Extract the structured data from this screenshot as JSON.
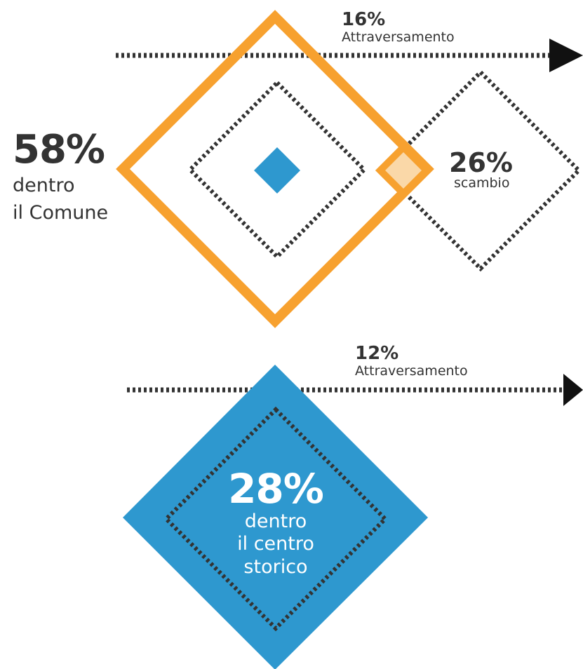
{
  "colors": {
    "orange": "#F7A12F",
    "blue": "#2E98CF",
    "dark": "#333333",
    "overlap": "#FAD8A8",
    "white": "#FFFFFF"
  },
  "comune": {
    "percent": "58%",
    "line1": "dentro",
    "line2": "il Comune"
  },
  "scambio": {
    "percent": "26%",
    "label": "scambio"
  },
  "attraversamento_comune": {
    "percent": "16%",
    "label": "Attraversamento"
  },
  "attraversamento_centro": {
    "percent": "12%",
    "label": "Attraversamento"
  },
  "centro_storico": {
    "percent": "28%",
    "line1": "dentro",
    "line2": "il centro",
    "line3": "storico"
  }
}
